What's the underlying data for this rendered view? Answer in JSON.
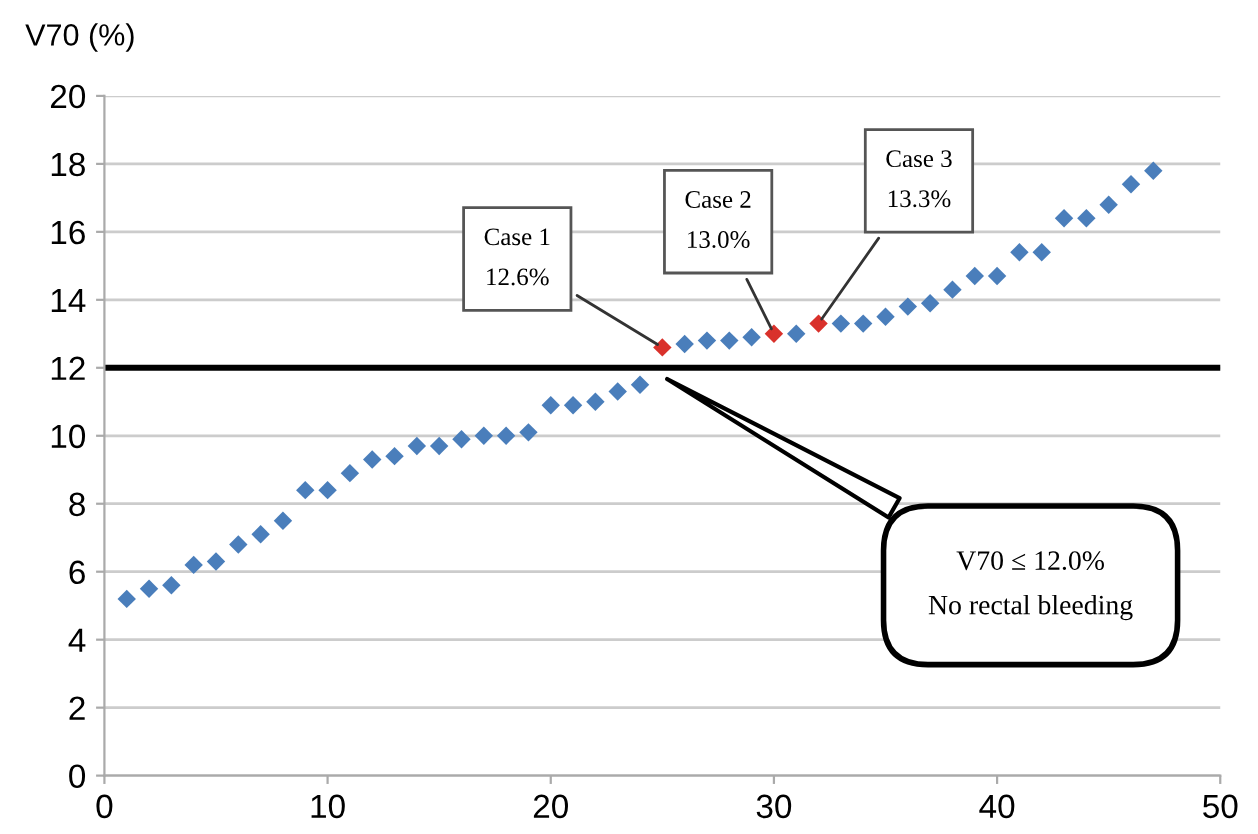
{
  "chart_data": {
    "type": "scatter",
    "ylabel": "V70 (%)",
    "series": [
      {
        "color": "#4a7ebb",
        "x": [
          1,
          2,
          3,
          4,
          5,
          6,
          7,
          8,
          9,
          10,
          11,
          12,
          13,
          14,
          15,
          16,
          17,
          18,
          19,
          20,
          21,
          22,
          23,
          24,
          26,
          27,
          28,
          29,
          31,
          33,
          34,
          35,
          36,
          37,
          38,
          39,
          40,
          41,
          42,
          43,
          44,
          45,
          46,
          47
        ],
        "values": [
          5.2,
          5.5,
          5.6,
          6.2,
          6.3,
          6.8,
          7.1,
          7.5,
          8.4,
          8.4,
          8.9,
          9.3,
          9.4,
          9.7,
          9.7,
          9.9,
          10.0,
          10.0,
          10.1,
          10.9,
          10.9,
          11.0,
          11.3,
          11.5,
          12.7,
          12.8,
          12.8,
          12.9,
          13.0,
          13.3,
          13.3,
          13.5,
          13.8,
          13.9,
          14.3,
          14.7,
          14.7,
          15.4,
          15.4,
          16.4,
          16.4,
          16.8,
          17.4,
          17.8
        ]
      },
      {
        "color": "#d9312b",
        "x": [
          25,
          30,
          32
        ],
        "values": [
          12.6,
          13.0,
          13.3
        ]
      }
    ],
    "annotations": [
      {
        "text": "Case 1\n12.6%",
        "x": 25,
        "y": 12.6
      },
      {
        "text": "Case 2\n13.0%",
        "x": 30,
        "y": 13.0
      },
      {
        "text": "Case 3\n13.3%",
        "x": 32,
        "y": 13.3
      }
    ],
    "ref_lines": [
      {
        "axis": "y",
        "value": 12,
        "label": "V70 ≤ 12.0%\nNo rectal bleeding",
        "color": "#000000"
      }
    ],
    "xlim": [
      0,
      50
    ],
    "xticks": [
      0,
      10,
      20,
      30,
      40,
      50
    ],
    "ylim": [
      0,
      20
    ],
    "yticks": [
      0,
      2,
      4,
      6,
      8,
      10,
      12,
      14,
      16,
      18,
      20
    ],
    "grid": "y",
    "marker": "diamond",
    "legend": false
  }
}
